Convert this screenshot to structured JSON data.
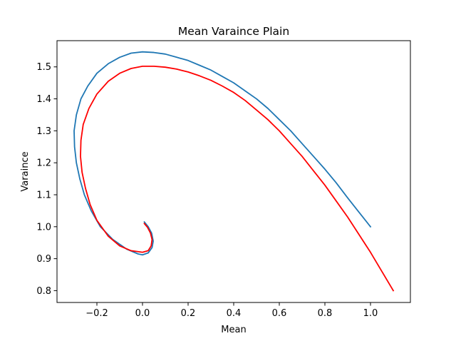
{
  "chart_data": {
    "type": "line",
    "title": "Mean Varaince Plain",
    "xlabel": "Mean",
    "ylabel": "Varaince",
    "xlim": [
      -0.375,
      1.175
    ],
    "ylim": [
      0.763,
      1.582
    ],
    "xticks": [
      {
        "value": -0.2,
        "label": "−0.2"
      },
      {
        "value": 0.0,
        "label": "0.0"
      },
      {
        "value": 0.2,
        "label": "0.2"
      },
      {
        "value": 0.4,
        "label": "0.4"
      },
      {
        "value": 0.6,
        "label": "0.6"
      },
      {
        "value": 0.8,
        "label": "0.8"
      },
      {
        "value": 1.0,
        "label": "1.0"
      }
    ],
    "yticks": [
      {
        "value": 0.8,
        "label": "0.8"
      },
      {
        "value": 0.9,
        "label": "0.9"
      },
      {
        "value": 1.0,
        "label": "1.0"
      },
      {
        "value": 1.1,
        "label": "1.1"
      },
      {
        "value": 1.2,
        "label": "1.2"
      },
      {
        "value": 1.3,
        "label": "1.3"
      },
      {
        "value": 1.4,
        "label": "1.4"
      },
      {
        "value": 1.5,
        "label": "1.5"
      }
    ],
    "grid": false,
    "legend": "none",
    "series": [
      {
        "color": "#1f77b4",
        "points": [
          [
            1.0,
            1.0
          ],
          [
            0.95,
            1.045
          ],
          [
            0.9,
            1.09
          ],
          [
            0.85,
            1.137
          ],
          [
            0.8,
            1.18
          ],
          [
            0.75,
            1.22
          ],
          [
            0.7,
            1.26
          ],
          [
            0.65,
            1.3
          ],
          [
            0.6,
            1.335
          ],
          [
            0.55,
            1.37
          ],
          [
            0.5,
            1.4
          ],
          [
            0.45,
            1.425
          ],
          [
            0.4,
            1.45
          ],
          [
            0.35,
            1.47
          ],
          [
            0.3,
            1.49
          ],
          [
            0.25,
            1.505
          ],
          [
            0.2,
            1.52
          ],
          [
            0.15,
            1.53
          ],
          [
            0.1,
            1.54
          ],
          [
            0.05,
            1.545
          ],
          [
            0.0,
            1.547
          ],
          [
            -0.05,
            1.543
          ],
          [
            -0.1,
            1.53
          ],
          [
            -0.15,
            1.51
          ],
          [
            -0.2,
            1.48
          ],
          [
            -0.24,
            1.44
          ],
          [
            -0.27,
            1.4
          ],
          [
            -0.29,
            1.35
          ],
          [
            -0.3,
            1.3
          ],
          [
            -0.298,
            1.25
          ],
          [
            -0.29,
            1.2
          ],
          [
            -0.275,
            1.15
          ],
          [
            -0.255,
            1.1
          ],
          [
            -0.225,
            1.05
          ],
          [
            -0.185,
            1.0
          ],
          [
            -0.13,
            0.96
          ],
          [
            -0.07,
            0.93
          ],
          [
            -0.02,
            0.915
          ],
          [
            0.0,
            0.912
          ],
          [
            0.025,
            0.918
          ],
          [
            0.042,
            0.935
          ],
          [
            0.047,
            0.955
          ],
          [
            0.04,
            0.98
          ],
          [
            0.025,
            1.0
          ],
          [
            0.008,
            1.015
          ]
        ]
      },
      {
        "color": "#ff0000",
        "points": [
          [
            1.1,
            0.8
          ],
          [
            1.05,
            0.86
          ],
          [
            1.0,
            0.92
          ],
          [
            0.95,
            0.975
          ],
          [
            0.9,
            1.03
          ],
          [
            0.85,
            1.08
          ],
          [
            0.8,
            1.13
          ],
          [
            0.75,
            1.175
          ],
          [
            0.7,
            1.22
          ],
          [
            0.65,
            1.26
          ],
          [
            0.6,
            1.3
          ],
          [
            0.55,
            1.335
          ],
          [
            0.5,
            1.365
          ],
          [
            0.45,
            1.395
          ],
          [
            0.4,
            1.42
          ],
          [
            0.35,
            1.44
          ],
          [
            0.3,
            1.458
          ],
          [
            0.25,
            1.472
          ],
          [
            0.2,
            1.484
          ],
          [
            0.15,
            1.493
          ],
          [
            0.1,
            1.499
          ],
          [
            0.05,
            1.502
          ],
          [
            0.0,
            1.502
          ],
          [
            -0.05,
            1.495
          ],
          [
            -0.1,
            1.48
          ],
          [
            -0.15,
            1.455
          ],
          [
            -0.2,
            1.415
          ],
          [
            -0.235,
            1.37
          ],
          [
            -0.26,
            1.32
          ],
          [
            -0.27,
            1.27
          ],
          [
            -0.272,
            1.22
          ],
          [
            -0.265,
            1.17
          ],
          [
            -0.25,
            1.12
          ],
          [
            -0.23,
            1.07
          ],
          [
            -0.2,
            1.02
          ],
          [
            -0.15,
            0.97
          ],
          [
            -0.1,
            0.94
          ],
          [
            -0.05,
            0.925
          ],
          [
            0.0,
            0.92
          ],
          [
            0.025,
            0.925
          ],
          [
            0.038,
            0.94
          ],
          [
            0.042,
            0.96
          ],
          [
            0.035,
            0.98
          ],
          [
            0.022,
            0.998
          ],
          [
            0.008,
            1.01
          ]
        ]
      }
    ]
  }
}
